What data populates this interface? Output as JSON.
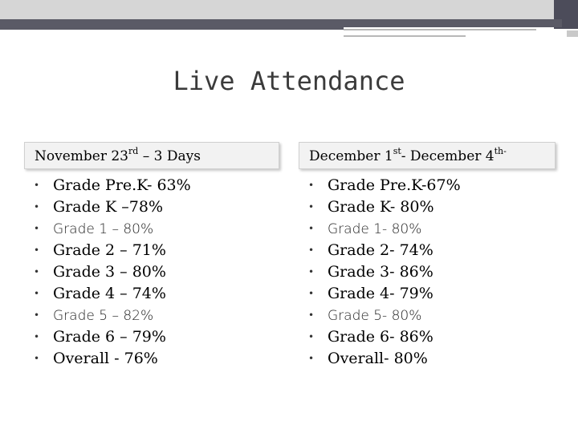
{
  "title": "Live Attendance",
  "left": {
    "heading_main": "November 23",
    "heading_sup": "rd",
    "heading_rest": " – 3 Days",
    "items": [
      {
        "text": "Grade Pre.K- 63%",
        "style": "serif"
      },
      {
        "text": "Grade K –78%",
        "style": "serif"
      },
      {
        "text": "Grade 1 –   80%",
        "style": "sans"
      },
      {
        "text": "Grade 2 – 71%",
        "style": "serif"
      },
      {
        "text": "Grade 3 – 80%",
        "style": "serif"
      },
      {
        "text": "Grade 4 – 74%",
        "style": "serif"
      },
      {
        "text": "Grade 5 –   82%",
        "style": "sans"
      },
      {
        "text": "Grade 6 – 79%",
        "style": "serif"
      },
      {
        "text": "Overall -  76%",
        "style": "serif"
      }
    ]
  },
  "right": {
    "heading_main": "December 1",
    "heading_sup": "st",
    "heading_mid": "- December 4",
    "heading_sup2": "th-",
    "items": [
      {
        "text": "Grade Pre.K-67%",
        "style": "serif"
      },
      {
        "text": "Grade K- 80%",
        "style": "serif"
      },
      {
        "text": "Grade 1-   80%",
        "style": "sans"
      },
      {
        "text": "Grade 2- 74%",
        "style": "serif"
      },
      {
        "text": "Grade 3- 86%",
        "style": "serif"
      },
      {
        "text": "Grade 4- 79%",
        "style": "serif"
      },
      {
        "text": "Grade 5-   80%",
        "style": "sans"
      },
      {
        "text": "Grade 6- 86%",
        "style": "serif"
      },
      {
        "text": "Overall- 80%",
        "style": "serif"
      }
    ]
  },
  "bullet_glyph": "•"
}
